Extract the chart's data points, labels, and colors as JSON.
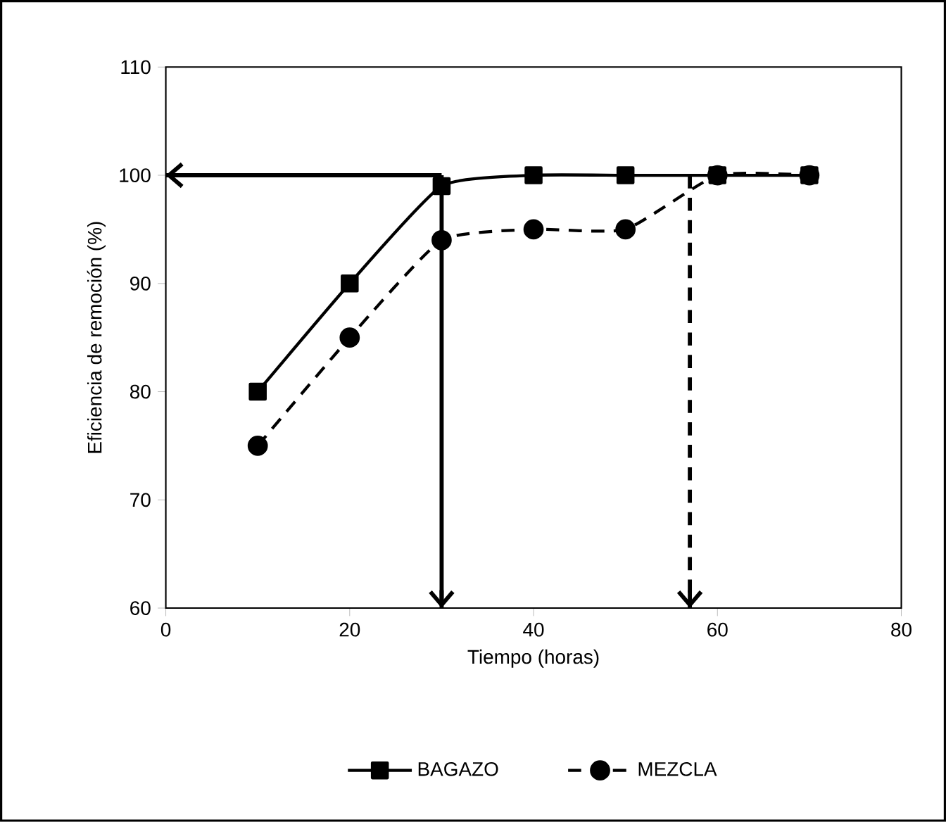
{
  "chart_data": {
    "type": "line",
    "xlabel": "Tiempo (horas)",
    "ylabel": "Eficiencia de remoción (%)",
    "x": [
      10,
      20,
      30,
      40,
      50,
      60,
      70
    ],
    "series": [
      {
        "name": "BAGAZO",
        "color": "#000000",
        "marker": "square",
        "line_style": "solid",
        "values": [
          80,
          90,
          99,
          100,
          100,
          100,
          100
        ]
      },
      {
        "name": "MEZCLA",
        "color": "#000000",
        "marker": "circle",
        "line_style": "dashed",
        "values": [
          75,
          85,
          94,
          95,
          95,
          100,
          100
        ]
      }
    ],
    "xlim": [
      0,
      80
    ],
    "xticks": [
      0,
      20,
      40,
      60,
      80
    ],
    "ylim": [
      60,
      110
    ],
    "yticks": [
      60,
      70,
      80,
      90,
      100,
      110
    ],
    "grid": false,
    "legend": "bottom",
    "ref_lines": [
      {
        "axis": "y",
        "value": 100,
        "line_style": "solid",
        "color": "#000000"
      },
      {
        "axis": "x",
        "value": 30,
        "line_style": "solid",
        "color": "#000000"
      },
      {
        "axis": "x",
        "value": 57,
        "line_style": "dashed",
        "color": "#000000"
      }
    ]
  }
}
